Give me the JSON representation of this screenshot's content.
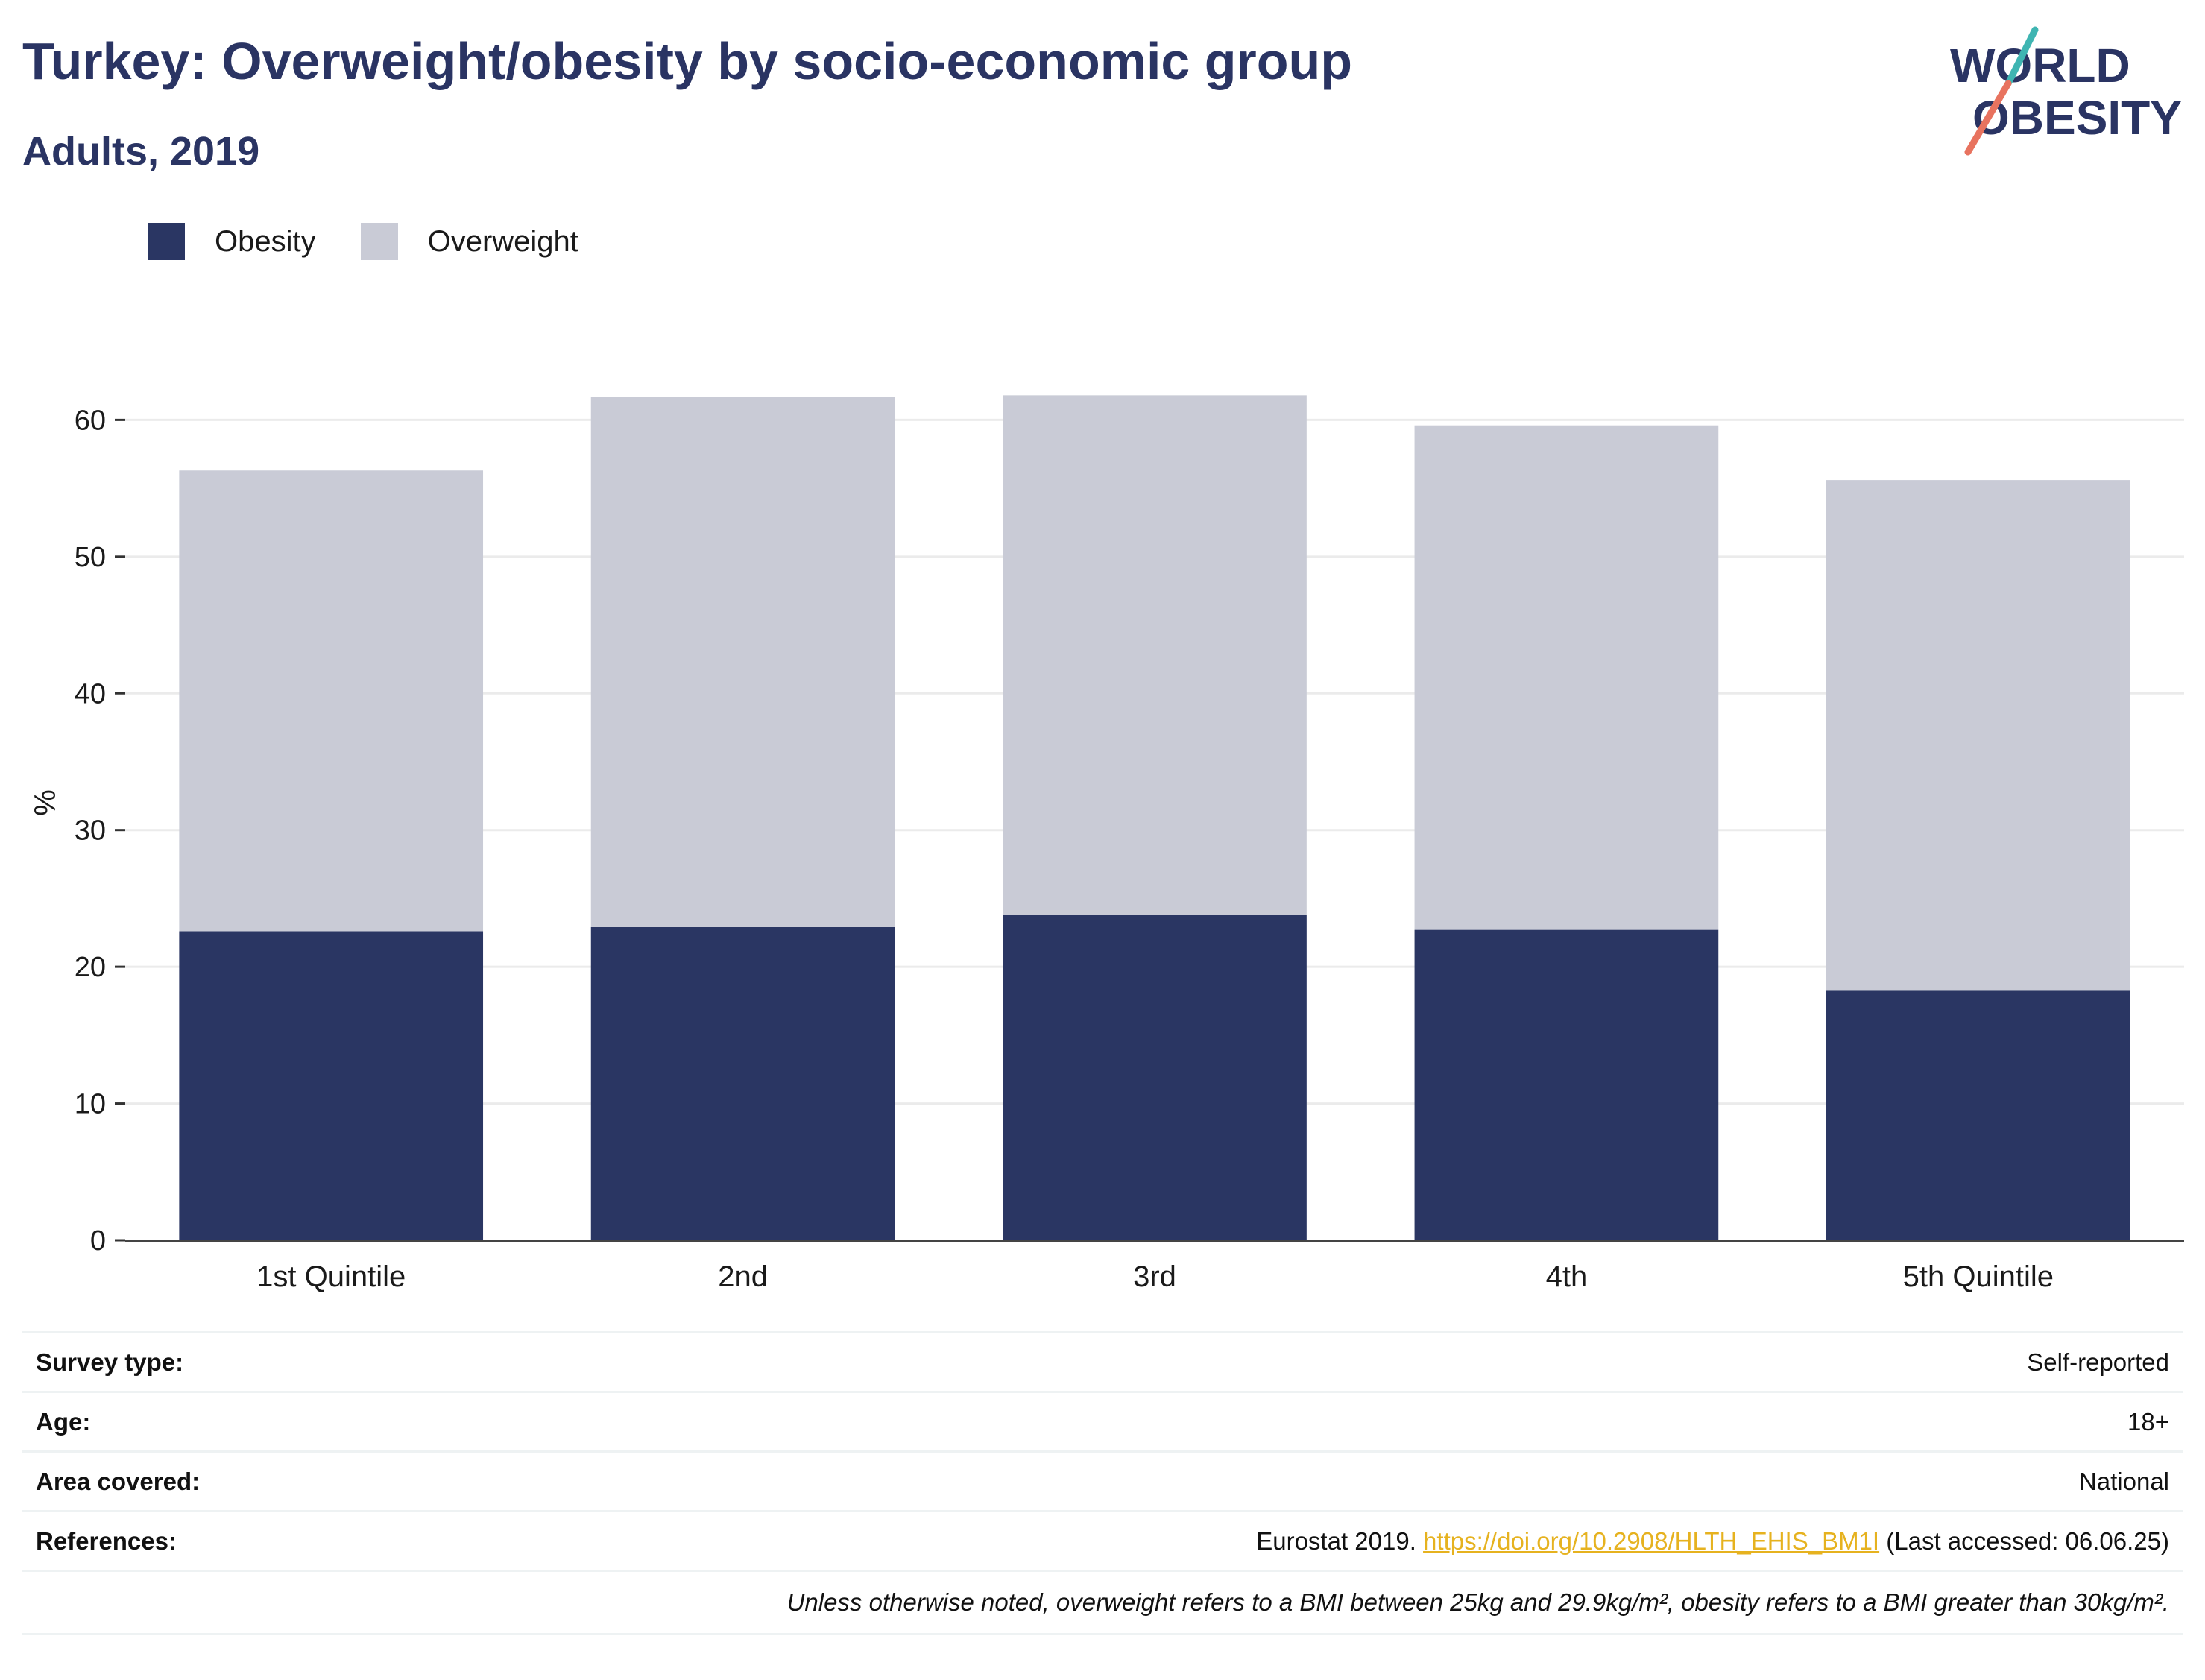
{
  "header": {
    "title": "Turkey: Overweight/obesity by socio-economic group",
    "subtitle": "Adults, 2019"
  },
  "logo": {
    "line1": "WORLD",
    "line2": "OBESITY",
    "colors": {
      "text": "#2a3463",
      "slash_teal": "#3fb5b2",
      "slash_coral": "#e8735f"
    }
  },
  "legend": {
    "items": [
      {
        "label": "Obesity",
        "color": "#2a3663"
      },
      {
        "label": "Overweight",
        "color": "#c9cbd6"
      }
    ]
  },
  "chart_data": {
    "type": "bar",
    "stacked": true,
    "categories": [
      "1st Quintile",
      "2nd",
      "3rd",
      "4th",
      "5th Quintile"
    ],
    "series": [
      {
        "name": "Obesity",
        "color": "#2a3663",
        "values": [
          22.6,
          22.9,
          23.8,
          22.7,
          18.3
        ]
      },
      {
        "name": "Overweight",
        "color": "#c9cbd6",
        "values": [
          33.7,
          38.8,
          38.0,
          36.9,
          37.3
        ]
      }
    ],
    "ylabel": "%",
    "ylim": [
      0,
      64
    ],
    "yticks": [
      0,
      10,
      20,
      30,
      40,
      50,
      60
    ],
    "grid": true,
    "legend_position": "top-left"
  },
  "info": {
    "rows": [
      {
        "key": "Survey type:",
        "value": "Self-reported"
      },
      {
        "key": "Age:",
        "value": "18+"
      },
      {
        "key": "Area covered:",
        "value": "National"
      }
    ],
    "references": {
      "key": "References:",
      "prefix": "Eurostat 2019.",
      "link": "https://doi.org/10.2908/HLTH_EHIS_BM1I",
      "suffix": "(Last accessed: 06.06.25)"
    },
    "note": "Unless otherwise noted, overweight refers to a BMI between 25kg and 29.9kg/m², obesity refers to a BMI greater than 30kg/m²."
  }
}
